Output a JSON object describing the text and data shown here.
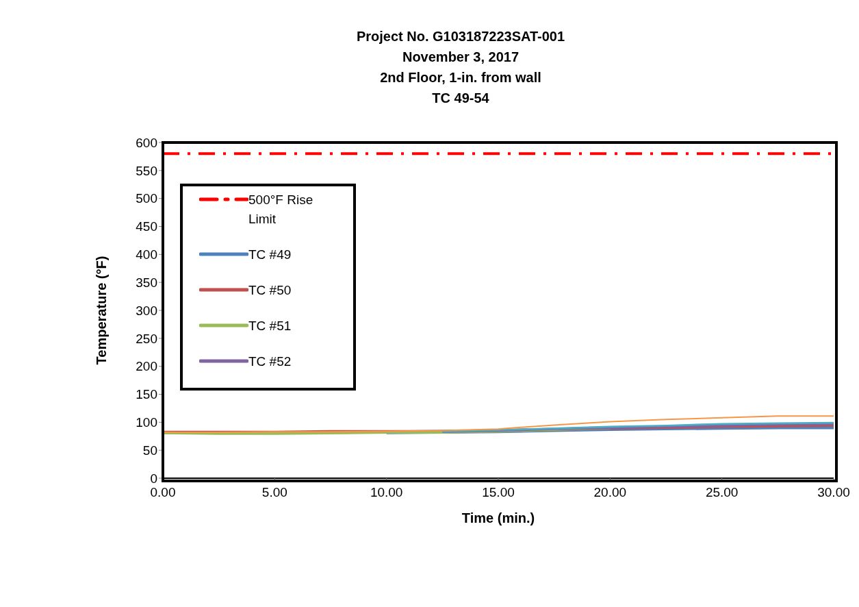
{
  "chart_data": {
    "type": "line",
    "title": "Project No. G103187223SAT-001\nNovember 3, 2017\n2nd Floor, 1-in. from wall\nTC 49-54",
    "xlabel": "Time (min.)",
    "ylabel": "Temperature (°F)",
    "x": [
      0,
      2.5,
      5,
      7.5,
      10,
      12.5,
      15,
      17.5,
      20,
      22.5,
      25,
      27.5,
      30
    ],
    "series": [
      {
        "name": "500°F Rise Limit",
        "color": "#ff0000",
        "line_style": "dashed",
        "x": [
          0,
          30
        ],
        "values": [
          580,
          580
        ]
      },
      {
        "name": "TC #49",
        "color": "#4f81bd",
        "values": [
          null,
          null,
          null,
          null,
          82,
          83,
          84,
          86,
          88,
          89,
          90,
          91,
          91
        ]
      },
      {
        "name": "TC #50",
        "color": "#c0504d",
        "values": [
          82,
          82,
          82,
          83,
          83,
          83,
          85,
          87,
          90,
          91,
          93,
          94,
          95
        ]
      },
      {
        "name": "TC #51",
        "color": "#9bbb59",
        "values": [
          81,
          80,
          80,
          81,
          82,
          82,
          84,
          87,
          90,
          null,
          null,
          null,
          null
        ]
      },
      {
        "name": "TC #52",
        "color": "#8064a2",
        "values": [
          null,
          null,
          null,
          null,
          null,
          83,
          85,
          88,
          90,
          92,
          94,
          96,
          97
        ]
      },
      {
        "color": "#4bacc6",
        "values": [
          null,
          null,
          null,
          null,
          null,
          83,
          86,
          89,
          92,
          94,
          97,
          98,
          99
        ]
      },
      {
        "color": "#f79646",
        "values": [
          82,
          82,
          83,
          83,
          84,
          85,
          88,
          95,
          101,
          105,
          108,
          111,
          111
        ]
      }
    ],
    "xlim": [
      0,
      30
    ],
    "xticks": [
      {
        "value": 0,
        "label": "0.00"
      },
      {
        "value": 5,
        "label": "5.00"
      },
      {
        "value": 10,
        "label": "10.00"
      },
      {
        "value": 15,
        "label": "15.00"
      },
      {
        "value": 20,
        "label": "20.00"
      },
      {
        "value": 25,
        "label": "25.00"
      },
      {
        "value": 30,
        "label": "30.00"
      }
    ],
    "ylim": [
      0,
      600
    ],
    "yticks": [
      0,
      50,
      100,
      150,
      200,
      250,
      300,
      350,
      400,
      450,
      500,
      550,
      600
    ],
    "legend": "top left",
    "marker": "none",
    "grid": false
  }
}
